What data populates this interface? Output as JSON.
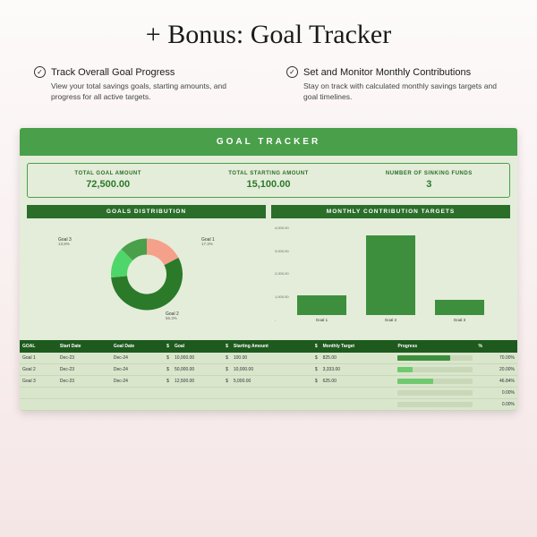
{
  "page": {
    "title": "+ Bonus: Goal Tracker"
  },
  "features": [
    {
      "title": "Track Overall Goal Progress",
      "desc": "View your total savings goals, starting amounts, and progress for all active targets."
    },
    {
      "title": "Set and Monitor Monthly Contributions",
      "desc": "Stay on track with calculated monthly savings targets and goal timelines."
    }
  ],
  "tracker": {
    "header": "GOAL  TRACKER",
    "summary": [
      {
        "label": "TOTAL GOAL AMOUNT",
        "value": "72,500.00"
      },
      {
        "label": "TOTAL STARTING AMOUNT",
        "value": "15,100.00"
      },
      {
        "label": "NUMBER OF SINKING FUNDS",
        "value": "3"
      }
    ],
    "donut": {
      "title": "GOALS DISTRIBUTION",
      "slices": [
        {
          "label": "Goal 1",
          "pct": 17.3,
          "color": "#f5a08a"
        },
        {
          "label": "Goal 2",
          "pct": 56.3,
          "color": "#2a7a2a"
        },
        {
          "label": "Goal 3",
          "pct": 13.8,
          "color": "#4fd66a"
        }
      ],
      "remaining_color": "#4a9f4a"
    },
    "bars": {
      "title": "MONTHLY CONTRIBUTION TARGETS",
      "ylim": [
        0,
        4000
      ],
      "yticks": [
        "4,000.00",
        "3,000.00",
        "2,000.00",
        "1,000.00",
        "-"
      ],
      "items": [
        {
          "label": "Goal 1",
          "value": 825,
          "color": "#3d8f3d"
        },
        {
          "label": "Goal 2",
          "value": 3333,
          "color": "#3d8f3d"
        },
        {
          "label": "Goal 3",
          "value": 625,
          "color": "#3d8f3d"
        }
      ]
    },
    "table": {
      "columns": [
        "GOAL",
        "Start Date",
        "Goal Date",
        "$",
        "Goal",
        "$",
        "Starting Amount",
        "$",
        "Monthly Target",
        "Progress",
        "%"
      ],
      "rows": [
        {
          "goal": "Goal 1",
          "start": "Dec-23",
          "end": "Dec-24",
          "goal_amt": "10,000.00",
          "starting": "100.00",
          "monthly": "825.00",
          "progress_pct": 70.0,
          "fill": "#3d8f3d"
        },
        {
          "goal": "Goal 2",
          "start": "Dec-23",
          "end": "Dec-24",
          "goal_amt": "50,000.00",
          "starting": "10,000.00",
          "monthly": "3,333.00",
          "progress_pct": 20.0,
          "fill": "#6fc96f"
        },
        {
          "goal": "Goal 3",
          "start": "Dec-23",
          "end": "Dec-24",
          "goal_amt": "12,500.00",
          "starting": "5,000.00",
          "monthly": "625.00",
          "progress_pct": 46.84,
          "fill": "#6fc96f"
        },
        {
          "goal": "",
          "start": "",
          "end": "",
          "goal_amt": "",
          "starting": "",
          "monthly": "",
          "progress_pct": 0,
          "fill": "#c8d8b8",
          "pct_label": "0.00%"
        },
        {
          "goal": "",
          "start": "",
          "end": "",
          "goal_amt": "",
          "starting": "",
          "monthly": "",
          "progress_pct": 0,
          "fill": "#c8d8b8",
          "pct_label": "0.00%"
        }
      ]
    }
  }
}
